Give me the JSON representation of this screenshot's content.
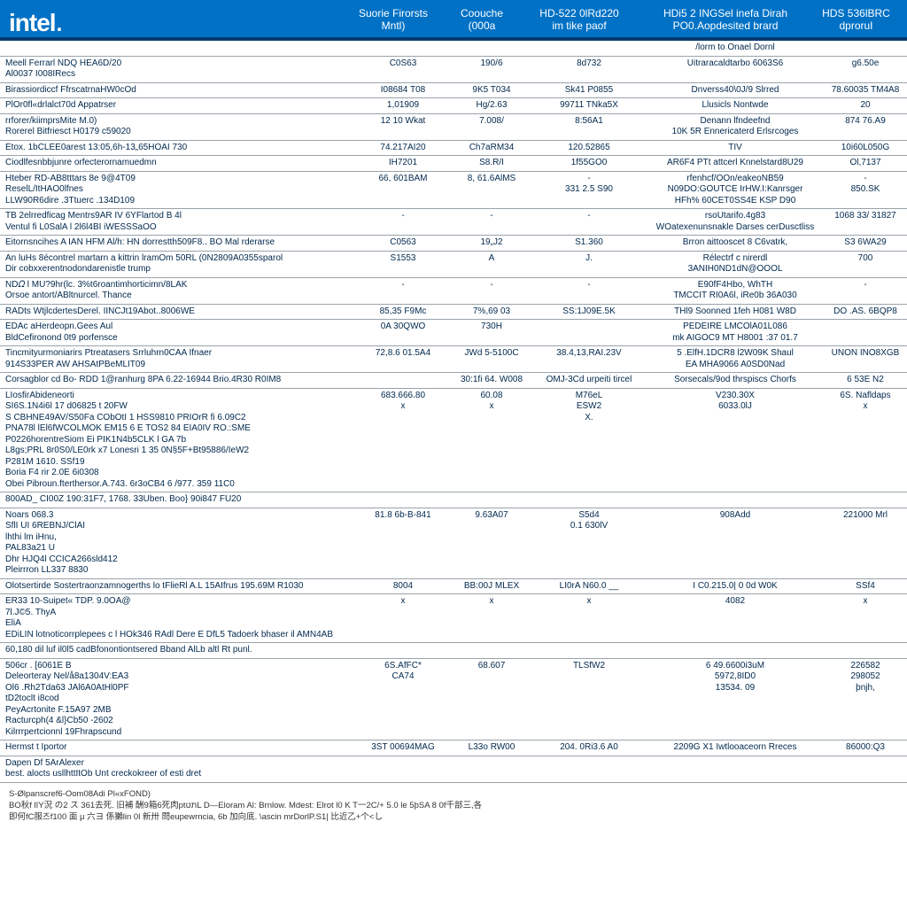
{
  "brand": {
    "logo_text": "intel",
    "logo_dot": ".",
    "header_bg": "#0071c5",
    "header_border": "#003b6f"
  },
  "columns": {
    "c2": {
      "line1": "Suorie Firorsts",
      "line2": "Mntl)"
    },
    "c3": {
      "line1": "Coouche",
      "line2": "(000a"
    },
    "c4": {
      "line1": "HD-522 0lRd220",
      "line2": "im tike paof"
    },
    "c5": {
      "line1": "HDi5 2 INGSel inefa Dirah",
      "line2": "PO0.Aopdesited brard"
    },
    "c6": {
      "line1": "HDS 536lBRC",
      "line2": "dproruI"
    }
  },
  "subheader_c5": "/lorm to Onael Dornl",
  "rows": [
    {
      "c1": [
        "Meell Ferrarl NDQ HEA6D/20",
        "Al0037 I008IRecs"
      ],
      "c2": "C0S63",
      "c3": "190/6",
      "c4": "8d732",
      "c5": "Uitraracaldtarbo 6063S6",
      "c6": "g6.50e"
    },
    {
      "c1": [
        "Birassiordiccf FfrscatrnaHW0cOd"
      ],
      "c2": "I08684 T08",
      "c3": "9K5 T034",
      "c4": "Sk41 P0855",
      "c5": "Dnverss40\\0J/9 Slrred",
      "c6": "78.60035 TM4A8"
    },
    {
      "c1": [
        "PlOr0fl«drlalct70d Appatrser"
      ],
      "c2": "1,01909",
      "c3": "Hg/2.63",
      "c4": "99711 TNka5X",
      "c5": "Llusicls Nontwde",
      "c6": "20"
    },
    {
      "c1": [
        "rrforer/kiimprsMite M.0)",
        "Rorerel Bitfriesct H0179 c59020"
      ],
      "c2": "12 10 Wkat",
      "c3": "7.008/",
      "c4": "8:56A1",
      "c5": [
        "Denann lfndeefnd",
        "10K 5R Ennericaterd Erlsrcoges"
      ],
      "c6": "874 76.A9"
    },
    {
      "c1": [
        "Etox. 1bCLEE0arest 13:05,6h-13„65HOAI 730"
      ],
      "c2": "74.217AI20",
      "c3": "Ch7aRM34",
      "c4": "120.52865",
      "c5": "TIV",
      "c6": "10i60L050G"
    },
    {
      "c1": [
        "Ciodlfesnbbjunre orfecterornamuedmn"
      ],
      "c2": "IH7201",
      "c3": "S8.R/I",
      "c4": "1f55GO0",
      "c5": "AR6F4 PTt attcerl Knnelstard8U29",
      "c6": "Ol,7137"
    },
    {
      "c1": [
        "Hteber RD-AB8tttars 8e 9@4T09",
        "ReselL/ItHAO0lfnes",
        "LLW90R6dire .3Ttuerc .134D109"
      ],
      "c2": [
        "",
        "",
        "66, 601BAM"
      ],
      "c3": [
        "",
        "",
        "8, 61.6AlMS"
      ],
      "c4": [
        "",
        "-",
        "331 2.5 S90"
      ],
      "c5": [
        "rfenhcf/OOn/eakeoNB59",
        "N09DO:GOUTCE IrHW.I:Kanrsger",
        "HFh% 60CET0SS4E KSP D90"
      ],
      "c6": [
        "",
        "-",
        "850.SK"
      ]
    },
    {
      "c1": [
        "TB 2elrredficag Mentrs9AR IV 6YFlartod B 4l",
        "Ventul fi L0SalA l 2l6l4BI iWESSSaOO"
      ],
      "c2": "-",
      "c3": "-",
      "c4": "-",
      "c5": [
        "rsoUtarifo.4g83",
        "WOatexenunsnakle Darses cerDusctliss"
      ],
      "c6": "1068 33/ 31827"
    },
    {
      "c1": [
        "Eitornsncihes A IAN HFM Al/h: HN dorrestth509F8.. BO Mal rderarse"
      ],
      "c2": "C0563",
      "c3": "19„J2",
      "c4": "S1.360",
      "c5": "Brron aittooscet 8 C6vatrk,",
      "c6": "S3 6WA29"
    },
    {
      "c1": [
        "An luHs  8écontrel martarn a kittrin lramOm 50RL (0N2809A0355sparol",
        "Dir cobxxerentnodondarenistle trump"
      ],
      "c2": "S1553",
      "c3": "A",
      "c4": "J.",
      "c5": [
        "Rélectrf c nirerdl",
        "3ANIH0ND1dN@OOOL"
      ],
      "c6": "700"
    },
    {
      "c1": [
        "ND𝛺 l MU?9hr(lc. 3%t6roantimhorticimn/8LAK",
        "Orsoe antort/ABltnurcel. Thance"
      ],
      "c2": "-",
      "c3": "-",
      "c4": "-",
      "c5": [
        "E90fF4Hbo, WhTH",
        "TMCCIT RI0A6l, iRe0b 36A030"
      ],
      "c6": "-"
    },
    {
      "c1": [
        "RADts  WtjlcdertesDerel. IINCJt19Abot..8006WE"
      ],
      "c2": "85,35 F9Mc",
      "c3": "7%,69 03",
      "c4": "SS:1J09E.5K",
      "c5": "THl9  Soonned 1feh H081 W8D",
      "c6": "DO .AS. 6BQP8"
    },
    {
      "c1": [
        "EDAc aHerdeopn.Gees Aul",
        "BldCefironond 0t9 porfensce"
      ],
      "c2": "0A 30QWO",
      "c3": "730H",
      "c4": "",
      "c5": [
        "PEDEIRE LMCOlA01L086",
        "mk AIGOC9 MT H8001 :37 01.7"
      ],
      "c6": ""
    },
    {
      "c1": [
        "Tincmityurmoniarirs Ptreatasers Srrluhrn0CAA Ifnaer",
        "914S33PER AW AHSAtPBeMLIT09"
      ],
      "c2": "72,8.6 01.5A4",
      "c3": "JWd 5-5100C",
      "c4": "38.4,13,RAI.23V",
      "c5": [
        "5 .ElfH.1DCR8 l2W09K Shaul",
        "EA MHA9066 A0SD0Nad"
      ],
      "c6": "UNON INO8XGB"
    },
    {
      "c1": [
        "Corsagblor   cd Bo- RDD 1@ranhurg  8PA 6.22-16944 Brio.4R30 R0IM8"
      ],
      "c2": "",
      "c3": "30:1fi 64. W008",
      "c4": "OMJ-3Cd urpeiti tircel",
      "c5": "Sorsecals/9od thrspiscs Chorfs",
      "c6": "6 53E N2"
    },
    {
      "c1": [
        "LIosfirAbideneorti",
        "SI6S.1N4i6l 17 d06825 t 20FW",
        "S CBHNE49AV/S50Fa CObOtI 1 HSS9810 PRIOrR fi 6.09C2",
        "PNA78l   lEl6fWCOLMOK EM15 6 E TOS2  84 EIA0IV RO.:SME",
        "P0226horentreSiom  Ei  PIK1N4b5CLK l GA 7b",
        "L8gs;PRL 8r0S0/LE0rk x7 Lonesri 1 35 0N§5F+Bt95886/IeW2",
        "P281M 1610. SSf19",
        "Boria F4 rir 2.0E 6i0308",
        "Obei Pibroun.fterthersor.A.743. 6r3oCB4 6 /977. 359 11C0"
      ],
      "c2": [
        "",
        "",
        "",
        "",
        "683.666.80",
        "",
        "",
        "",
        "x"
      ],
      "c3": [
        "",
        "",
        "",
        "",
        "60.08",
        "",
        "",
        "",
        "x"
      ],
      "c4": [
        "",
        "",
        "",
        "M76eL",
        "ESW2",
        "",
        "",
        "",
        "X."
      ],
      "c5": [
        "",
        "",
        "",
        "",
        "V230.30X",
        "",
        "",
        "",
        "6033.0lJ"
      ],
      "c6": [
        "",
        "",
        "",
        "",
        "6S. Nafldaps",
        "",
        "",
        "",
        "x"
      ]
    },
    {
      "c1": [
        "800AD_ CI00Z 190:31F7, 1768. 33Uben. Boo} 90i847 FU20"
      ],
      "c2": "",
      "c3": "",
      "c4": "",
      "c5": "",
      "c6": ""
    },
    {
      "c1": [
        "Noars 068.3",
        "SflI UI 6REBNJ/ClAI",
        "lhthi lm iHnu,",
        "PAL83a21 U",
        "Dhr HJQ4l CCICA266sld412",
        "Pleirrron LL337 8830"
      ],
      "c2": [
        "",
        "",
        "",
        "",
        "81.8 6b-B-841",
        ""
      ],
      "c3": [
        "",
        "",
        "",
        "",
        "9.63A07",
        ""
      ],
      "c4": [
        "",
        "",
        "",
        "",
        "S5d4",
        "0.1 630lV"
      ],
      "c5": [
        "",
        "",
        "",
        "",
        "908Add",
        ""
      ],
      "c6": [
        "",
        "",
        "",
        "",
        "221000 Mrl",
        ""
      ]
    },
    {
      "c1": [
        "Olotsertirde Sostertraonzamnogerths lo tFlieRl A.L 15AIfrus   195.69M R1030"
      ],
      "c2": "8004",
      "c3": "BB:00J  MLEX",
      "c4": "LI0rA N60.0       __",
      "c5": "I C0.215.0| 0 0d W0K",
      "c6": "SSf4"
    },
    {
      "c1": [
        "ER33 10-Suipet« TDP. 9.0OA@",
        "7l.J©5. ThyA",
        "EliA",
        "EDiLIN lotnoticorrplepees  c l HOk346 RAdl Dere E DfL5 Tadoerk bhaser il AMN4AB"
      ],
      "c2": [
        "",
        "",
        "",
        "x"
      ],
      "c3": [
        "",
        "",
        "",
        "x"
      ],
      "c4": [
        "",
        "",
        "",
        "x"
      ],
      "c5": [
        "",
        "",
        "",
        "4082"
      ],
      "c6": [
        "",
        "",
        "",
        "x"
      ]
    },
    {
      "c1": [
        "60,180 dil luf il0l5 cadBfonontiontsered Bband AlLb  altl Rt  punl."
      ],
      "c2": "",
      "c3": "",
      "c4": "",
      "c5": "",
      "c6": ""
    },
    {
      "c1": [
        "506cr . [6061E B",
        "Deleorteray Nel/å8a1304V:EA3",
        "Ol6 .Rh2Tda63 JAl6A0AtHl0PF",
        "tD2toclt i8cod",
        "PeyAcrtonite F.15A97 2MB",
        "Racturcph(4 &l}Cb50 -2602",
        "Kilrrrpertcionnl 19Fhrapscund"
      ],
      "c2": [
        "",
        "",
        "",
        "",
        "",
        "6S.AfFC*",
        "CA74"
      ],
      "c3": [
        "",
        "",
        "",
        "",
        "",
        "",
        "68.607"
      ],
      "c4": [
        "",
        "",
        "",
        "TLSfW2",
        "",
        "",
        ""
      ],
      "c5": [
        "",
        "",
        "6 49.6600i3uM",
        "",
        "",
        "5972,8ID0",
        "13534. 09"
      ],
      "c6": [
        "",
        "",
        "",
        "",
        "226582",
        "298052",
        "þnjh,"
      ]
    },
    {
      "c1": [
        "Hermst t Iportor"
      ],
      "c2": "3ST 00694MAG",
      "c3": "L33o RW00",
      "c4": "204. 0Ri3.6 A0",
      "c5": "2209G X1 Iwtlooaceorn Rreces",
      "c6": "86000:Q3"
    },
    {
      "c1": [
        "Dapen Df 5ArAlexer",
        "best. alocts usllhttItOb Unt creckokreer of esti dret"
      ],
      "c2": "",
      "c3": "",
      "c4": "",
      "c5": "",
      "c6": ""
    }
  ],
  "footer": {
    "l1": "S-Ølpanscref6-Oom08Adi Pl«xFOND)",
    "l2": "BO秋f lîY況 の2 ス 361去死. 旧補 酬9箱6死肉ptתטL D—Eloram Al: Brnlow. Mdest: Elrot l0 K T一2С/+ 5.0 le 5þSA 8 0f千部三,各",
    "l3": "即何fC服즈f100 面 μ 六ヨ 係獺lin 0l 新卅 問eupewrncia, 6b 加向底. \\ascin mrDorlP.S1| 比近乙+个<し"
  }
}
